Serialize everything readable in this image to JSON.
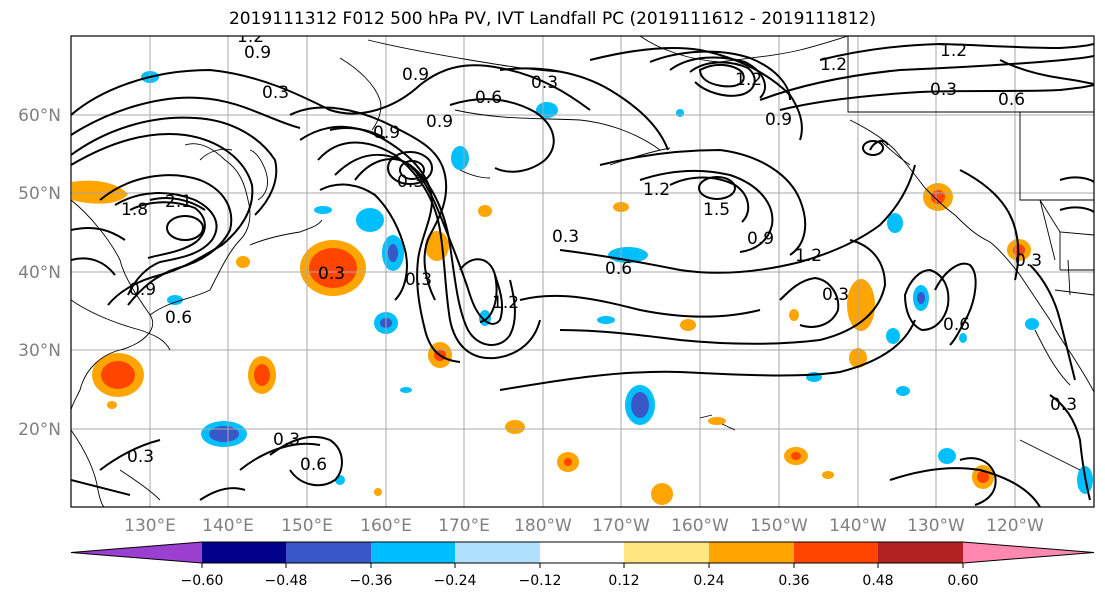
{
  "title": "2019111312 F012 500 hPa PV, IVT Landfall PC (2019111612 - 2019111812)",
  "lat_labels": [
    "60°N",
    "50°N",
    "40°N",
    "30°N",
    "20°N"
  ],
  "lon_labels": [
    "130°E",
    "140°E",
    "150°E",
    "160°E",
    "170°E",
    "180°W",
    "170°W",
    "160°W",
    "150°W",
    "140°W",
    "130°W",
    "120°W"
  ],
  "contour_labels": [
    "1.2",
    "0.9",
    "0.3",
    "0.9",
    "0.3",
    "0.6",
    "0.9",
    "0.9",
    "0.3",
    "1.2",
    "0.3",
    "0.6",
    "1.2",
    "1.5",
    "0.9",
    "1.8",
    "2.1",
    "0.9",
    "0.3",
    "0.3",
    "1.2",
    "0.6",
    "1.2",
    "0.9",
    "1.2",
    "0.3",
    "0.3",
    "0.6",
    "0.3",
    "0.6",
    "0.3",
    "0.6",
    "0.3",
    "1.2",
    "0.3"
  ],
  "colorbar": {
    "ticks": [
      "−0.60",
      "−0.48",
      "−0.36",
      "−0.24",
      "−0.12",
      "0.12",
      "0.24",
      "0.36",
      "0.48",
      "0.60"
    ],
    "colors": [
      "#9b3fd0",
      "#00008b",
      "#3a57c8",
      "#00bfff",
      "#b0e2ff",
      "#ffffff",
      "#ffe680",
      "#ffa500",
      "#ff4500",
      "#b22222",
      "#ff88b0"
    ]
  }
}
